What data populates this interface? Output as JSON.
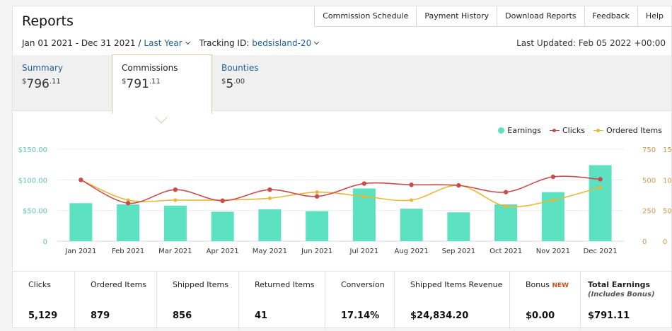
{
  "title": "Reports",
  "top_nav": [
    "Commission Schedule",
    "Payment History",
    "Download Reports",
    "Feedback",
    "Help"
  ],
  "date_range": "Jan 01 2021 - Dec 31 2021 /",
  "period_select": "Last Year",
  "tracking_label": "Tracking ID:",
  "tracking_id": "bedsisland-20",
  "last_updated": "Last Updated: Feb 05 2022 +00:00",
  "tabs": [
    {
      "name": "Summary",
      "dollars": "796",
      "cents": ".11"
    },
    {
      "name": "Commissions",
      "dollars": "791",
      "cents": ".11"
    },
    {
      "name": "Bounties",
      "dollars": "5",
      "cents": ".00"
    }
  ],
  "currency_symbol": "$",
  "legend": [
    "Earnings",
    "Clicks",
    "Ordered Items"
  ],
  "colors": {
    "earnings": "#5ce1c1",
    "clicks": "#c94c4c",
    "ordered": "#e8b83a",
    "link": "#1f5f99"
  },
  "chart_data": {
    "type": "bar",
    "categories": [
      "Jan 2021",
      "Feb 2021",
      "Mar 2021",
      "Apr 2021",
      "May 2021",
      "Jun 2021",
      "Jul 2021",
      "Aug 2021",
      "Sep 2021",
      "Oct 2021",
      "Nov 2021",
      "Dec 2021"
    ],
    "series": [
      {
        "name": "Earnings",
        "type": "bar",
        "axis": "left",
        "values": [
          62,
          60,
          58,
          48,
          52,
          49,
          86,
          53,
          47,
          60,
          80,
          124
        ]
      },
      {
        "name": "Clicks",
        "type": "line",
        "axis": "right1",
        "values": [
          500,
          310,
          420,
          330,
          420,
          365,
          470,
          460,
          455,
          400,
          525,
          505
        ]
      },
      {
        "name": "Ordered Items",
        "type": "line",
        "axis": "right2",
        "values": [
          100,
          67,
          67,
          67,
          70,
          80,
          73,
          67,
          91,
          57,
          67,
          88
        ]
      }
    ],
    "left_axis": {
      "ticks": [
        "0",
        "$50.00",
        "$100.00",
        "$150.00"
      ],
      "range": [
        0,
        150
      ]
    },
    "right1_axis": {
      "ticks": [
        "0",
        "250",
        "500",
        "750"
      ],
      "range": [
        0,
        750
      ]
    },
    "right2_axis": {
      "ticks": [
        "0",
        "50",
        "100",
        "150"
      ],
      "range": [
        0,
        150
      ]
    },
    "grid": true,
    "legend_position": "top-right"
  },
  "stats": [
    {
      "label": "Clicks",
      "value": "5,129"
    },
    {
      "label": "Ordered Items",
      "value": "879"
    },
    {
      "label": "Shipped Items",
      "value": "856"
    },
    {
      "label": "Returned Items",
      "value": "41"
    },
    {
      "label": "Conversion",
      "value": "17.14%"
    },
    {
      "label": "Shipped Items Revenue",
      "value": "$24,834.20"
    },
    {
      "label": "Bonus",
      "badge": "NEW",
      "value": "$0.00"
    },
    {
      "label": "Total Earnings",
      "sublabel": "(Includes Bonus)",
      "value": "$791.11"
    }
  ]
}
